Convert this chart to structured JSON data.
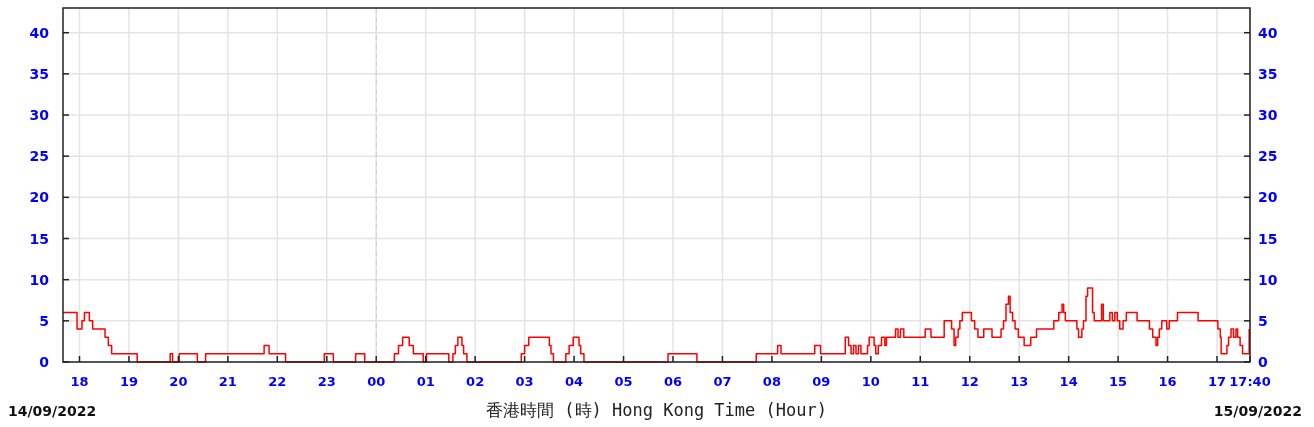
{
  "chart_data": {
    "type": "step",
    "xlabel": "香港時間 (時) Hong Kong Time (Hour)",
    "color": "#ff0000",
    "grid": true,
    "xlim": [
      "2022-09-14T17:40",
      "2022-09-15T17:40"
    ],
    "ylim": [
      0,
      43
    ],
    "y2lim": [
      0,
      43
    ],
    "xticks": [
      {
        "value": "2022-09-14T18:00",
        "label": "18"
      },
      {
        "value": "2022-09-14T19:00",
        "label": "19"
      },
      {
        "value": "2022-09-14T20:00",
        "label": "20"
      },
      {
        "value": "2022-09-14T21:00",
        "label": "21"
      },
      {
        "value": "2022-09-14T22:00",
        "label": "22"
      },
      {
        "value": "2022-09-14T23:00",
        "label": "23"
      },
      {
        "value": "2022-09-15T00:00",
        "label": "00"
      },
      {
        "value": "2022-09-15T01:00",
        "label": "01"
      },
      {
        "value": "2022-09-15T02:00",
        "label": "02"
      },
      {
        "value": "2022-09-15T03:00",
        "label": "03"
      },
      {
        "value": "2022-09-15T04:00",
        "label": "04"
      },
      {
        "value": "2022-09-15T05:00",
        "label": "05"
      },
      {
        "value": "2022-09-15T06:00",
        "label": "06"
      },
      {
        "value": "2022-09-15T07:00",
        "label": "07"
      },
      {
        "value": "2022-09-15T08:00",
        "label": "08"
      },
      {
        "value": "2022-09-15T09:00",
        "label": "09"
      },
      {
        "value": "2022-09-15T10:00",
        "label": "10"
      },
      {
        "value": "2022-09-15T11:00",
        "label": "11"
      },
      {
        "value": "2022-09-15T12:00",
        "label": "12"
      },
      {
        "value": "2022-09-15T13:00",
        "label": "13"
      },
      {
        "value": "2022-09-15T14:00",
        "label": "14"
      },
      {
        "value": "2022-09-15T15:00",
        "label": "15"
      },
      {
        "value": "2022-09-15T16:00",
        "label": "16"
      },
      {
        "value": "2022-09-15T17:00",
        "label": "17"
      },
      {
        "value": "2022-09-15T17:40",
        "label": "17:40"
      }
    ],
    "yticks": [
      0,
      5,
      10,
      15,
      20,
      25,
      30,
      35,
      40
    ],
    "y2ticks": [
      0,
      5,
      10,
      15,
      20,
      25,
      30,
      35,
      40
    ],
    "ref_lines": [
      {
        "axis": "x",
        "value": "2022-09-15T00:00",
        "color": "#cccccc",
        "line_style": "dashed"
      }
    ],
    "annotations": [
      "14/09/2022",
      "15/09/2022"
    ],
    "x": [
      "2022-09-14T17:40",
      "2022-09-14T17:57",
      "2022-09-14T18:03",
      "2022-09-14T18:06",
      "2022-09-14T18:12",
      "2022-09-14T18:16",
      "2022-09-14T18:31",
      "2022-09-14T18:35",
      "2022-09-14T18:39",
      "2022-09-14T19:10",
      "2022-09-14T19:50",
      "2022-09-14T19:53",
      "2022-09-14T20:01",
      "2022-09-14T20:23",
      "2022-09-14T20:33",
      "2022-09-14T21:44",
      "2022-09-14T21:50",
      "2022-09-14T22:10",
      "2022-09-14T22:57",
      "2022-09-14T23:08",
      "2022-09-14T23:35",
      "2022-09-14T23:46",
      "2022-09-15T00:22",
      "2022-09-15T00:27",
      "2022-09-15T00:32",
      "2022-09-15T00:40",
      "2022-09-15T00:45",
      "2022-09-15T00:57",
      "2022-09-15T01:01",
      "2022-09-15T01:28",
      "2022-09-15T01:33",
      "2022-09-15T01:36",
      "2022-09-15T01:39",
      "2022-09-15T01:44",
      "2022-09-15T01:46",
      "2022-09-15T01:50",
      "2022-09-15T02:56",
      "2022-09-15T03:00",
      "2022-09-15T03:05",
      "2022-09-15T03:30",
      "2022-09-15T03:32",
      "2022-09-15T03:35",
      "2022-09-15T03:50",
      "2022-09-15T03:54",
      "2022-09-15T03:59",
      "2022-09-15T04:06",
      "2022-09-15T04:08",
      "2022-09-15T04:12",
      "2022-09-15T05:54",
      "2022-09-15T06:29",
      "2022-09-15T07:41",
      "2022-09-15T08:07",
      "2022-09-15T08:11",
      "2022-09-15T08:52",
      "2022-09-15T08:59",
      "2022-09-15T09:29",
      "2022-09-15T09:33",
      "2022-09-15T09:36",
      "2022-09-15T09:39",
      "2022-09-15T09:42",
      "2022-09-15T09:45",
      "2022-09-15T09:48",
      "2022-09-15T09:56",
      "2022-09-15T09:58",
      "2022-09-15T10:04",
      "2022-09-15T10:06",
      "2022-09-15T10:09",
      "2022-09-15T10:13",
      "2022-09-15T10:17",
      "2022-09-15T10:19",
      "2022-09-15T10:30",
      "2022-09-15T10:33",
      "2022-09-15T10:36",
      "2022-09-15T10:40",
      "2022-09-15T11:06",
      "2022-09-15T11:13",
      "2022-09-15T11:29",
      "2022-09-15T11:38",
      "2022-09-15T11:41",
      "2022-09-15T11:43",
      "2022-09-15T11:46",
      "2022-09-15T11:48",
      "2022-09-15T11:51",
      "2022-09-15T12:02",
      "2022-09-15T12:06",
      "2022-09-15T12:10",
      "2022-09-15T12:17",
      "2022-09-15T12:27",
      "2022-09-15T12:38",
      "2022-09-15T12:41",
      "2022-09-15T12:44",
      "2022-09-15T12:47",
      "2022-09-15T12:49",
      "2022-09-15T12:52",
      "2022-09-15T12:55",
      "2022-09-15T12:59",
      "2022-09-15T13:06",
      "2022-09-15T13:14",
      "2022-09-15T13:21",
      "2022-09-15T13:42",
      "2022-09-15T13:48",
      "2022-09-15T13:52",
      "2022-09-15T13:54",
      "2022-09-15T13:56",
      "2022-09-15T14:10",
      "2022-09-15T14:12",
      "2022-09-15T14:16",
      "2022-09-15T14:18",
      "2022-09-15T14:21",
      "2022-09-15T14:23",
      "2022-09-15T14:29",
      "2022-09-15T14:31",
      "2022-09-15T14:40",
      "2022-09-15T14:42",
      "2022-09-15T14:50",
      "2022-09-15T14:53",
      "2022-09-15T14:56",
      "2022-09-15T14:59",
      "2022-09-15T15:02",
      "2022-09-15T15:06",
      "2022-09-15T15:10",
      "2022-09-15T15:23",
      "2022-09-15T15:38",
      "2022-09-15T15:42",
      "2022-09-15T15:46",
      "2022-09-15T15:48",
      "2022-09-15T15:50",
      "2022-09-15T15:53",
      "2022-09-15T15:59",
      "2022-09-15T16:02",
      "2022-09-15T16:12",
      "2022-09-15T16:37",
      "2022-09-15T17:01",
      "2022-09-15T17:04",
      "2022-09-15T17:05",
      "2022-09-15T17:12",
      "2022-09-15T17:14",
      "2022-09-15T17:17",
      "2022-09-15T17:20",
      "2022-09-15T17:23",
      "2022-09-15T17:25",
      "2022-09-15T17:28",
      "2022-09-15T17:31",
      "2022-09-15T17:39"
    ],
    "values": [
      6,
      4,
      5,
      6,
      5,
      4,
      3,
      2,
      1,
      0,
      1,
      0,
      1,
      0,
      1,
      2,
      1,
      0,
      1,
      0,
      1,
      0,
      1,
      2,
      3,
      2,
      1,
      0,
      1,
      0,
      1,
      2,
      3,
      2,
      1,
      0,
      1,
      2,
      3,
      2,
      1,
      0,
      1,
      2,
      3,
      2,
      1,
      0,
      1,
      0,
      1,
      2,
      1,
      2,
      1,
      3,
      2,
      1,
      2,
      1,
      2,
      1,
      2,
      3,
      2,
      1,
      2,
      3,
      2,
      3,
      4,
      3,
      4,
      3,
      4,
      3,
      5,
      4,
      2,
      3,
      4,
      5,
      6,
      5,
      4,
      3,
      4,
      3,
      4,
      5,
      7,
      8,
      6,
      5,
      4,
      3,
      2,
      3,
      4,
      5,
      6,
      7,
      6,
      5,
      4,
      3,
      4,
      5,
      8,
      9,
      6,
      5,
      7,
      5,
      6,
      5,
      6,
      5,
      4,
      5,
      6,
      5,
      4,
      3,
      2,
      3,
      4,
      5,
      4,
      5,
      6,
      5,
      4,
      3,
      1,
      2,
      3,
      4,
      3,
      4,
      3,
      2,
      1,
      4
    ]
  }
}
